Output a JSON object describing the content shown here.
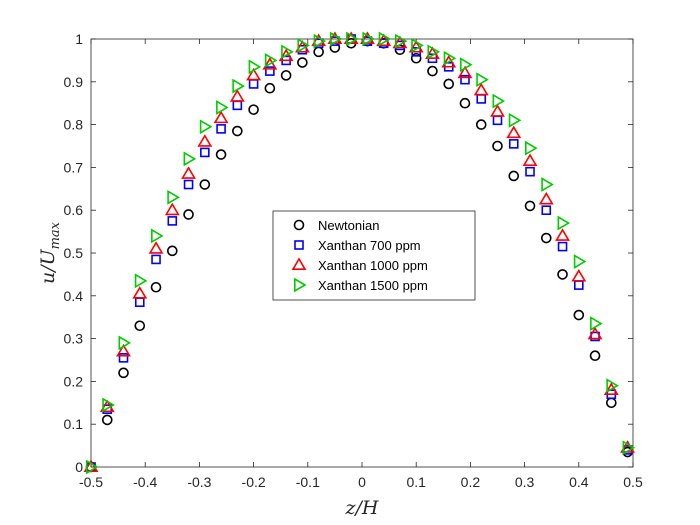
{
  "chart_data": {
    "type": "scatter",
    "title": "",
    "xlabel": "z/H",
    "ylabel_main": "u/U",
    "ylabel_sub": "max",
    "xlim": [
      -0.5,
      0.5
    ],
    "ylim": [
      0,
      1
    ],
    "xticks": [
      -0.5,
      -0.4,
      -0.3,
      -0.2,
      -0.1,
      0,
      0.1,
      0.2,
      0.3,
      0.4,
      0.5
    ],
    "yticks": [
      0,
      0.1,
      0.2,
      0.3,
      0.4,
      0.5,
      0.6,
      0.7,
      0.8,
      0.9,
      1
    ],
    "grid": false,
    "legend_position": "center",
    "series": [
      {
        "name": "Newtonian",
        "marker": "circle",
        "color": "#000000",
        "x": [
          -0.5,
          -0.47,
          -0.44,
          -0.41,
          -0.38,
          -0.35,
          -0.32,
          -0.29,
          -0.26,
          -0.23,
          -0.2,
          -0.17,
          -0.14,
          -0.11,
          -0.08,
          -0.05,
          -0.02,
          0.01,
          0.04,
          0.07,
          0.1,
          0.13,
          0.16,
          0.19,
          0.22,
          0.25,
          0.28,
          0.31,
          0.34,
          0.37,
          0.4,
          0.43,
          0.46,
          0.49
        ],
        "y": [
          0.0,
          0.11,
          0.22,
          0.33,
          0.42,
          0.505,
          0.59,
          0.66,
          0.73,
          0.785,
          0.835,
          0.885,
          0.915,
          0.945,
          0.97,
          0.98,
          0.99,
          0.995,
          0.99,
          0.975,
          0.955,
          0.925,
          0.895,
          0.85,
          0.8,
          0.75,
          0.68,
          0.61,
          0.535,
          0.45,
          0.355,
          0.26,
          0.15,
          0.035
        ]
      },
      {
        "name": "Xanthan 700 ppm",
        "marker": "square",
        "color": "#0000FF",
        "x": [
          -0.5,
          -0.47,
          -0.44,
          -0.41,
          -0.38,
          -0.35,
          -0.32,
          -0.29,
          -0.26,
          -0.23,
          -0.2,
          -0.17,
          -0.14,
          -0.11,
          -0.08,
          -0.05,
          -0.02,
          0.01,
          0.04,
          0.07,
          0.1,
          0.13,
          0.16,
          0.19,
          0.22,
          0.25,
          0.28,
          0.31,
          0.34,
          0.37,
          0.4,
          0.43,
          0.46,
          0.49
        ],
        "y": [
          0.0,
          0.135,
          0.255,
          0.385,
          0.485,
          0.575,
          0.66,
          0.735,
          0.79,
          0.845,
          0.895,
          0.925,
          0.95,
          0.975,
          0.99,
          0.995,
          1.0,
          0.995,
          0.99,
          0.985,
          0.97,
          0.955,
          0.935,
          0.905,
          0.86,
          0.81,
          0.755,
          0.69,
          0.6,
          0.515,
          0.425,
          0.305,
          0.17,
          0.04
        ]
      },
      {
        "name": "Xanthan 1000 ppm",
        "marker": "triangle-up",
        "color": "#FF0000",
        "x": [
          -0.5,
          -0.47,
          -0.44,
          -0.41,
          -0.38,
          -0.35,
          -0.32,
          -0.29,
          -0.26,
          -0.23,
          -0.2,
          -0.17,
          -0.14,
          -0.11,
          -0.08,
          -0.05,
          -0.02,
          0.01,
          0.04,
          0.07,
          0.1,
          0.13,
          0.16,
          0.19,
          0.22,
          0.25,
          0.28,
          0.31,
          0.34,
          0.37,
          0.4,
          0.43,
          0.46,
          0.49
        ],
        "y": [
          0.0,
          0.14,
          0.27,
          0.405,
          0.51,
          0.6,
          0.685,
          0.76,
          0.815,
          0.865,
          0.915,
          0.94,
          0.96,
          0.98,
          0.995,
          1.0,
          1.0,
          1.0,
          0.995,
          0.99,
          0.98,
          0.965,
          0.945,
          0.92,
          0.88,
          0.83,
          0.78,
          0.715,
          0.625,
          0.54,
          0.445,
          0.31,
          0.18,
          0.045
        ]
      },
      {
        "name": "Xanthan 1500 ppm",
        "marker": "triangle-right",
        "color": "#00CC00",
        "x": [
          -0.5,
          -0.47,
          -0.44,
          -0.41,
          -0.38,
          -0.35,
          -0.32,
          -0.29,
          -0.26,
          -0.23,
          -0.2,
          -0.17,
          -0.14,
          -0.11,
          -0.08,
          -0.05,
          -0.02,
          0.01,
          0.04,
          0.07,
          0.1,
          0.13,
          0.16,
          0.19,
          0.22,
          0.25,
          0.28,
          0.31,
          0.34,
          0.37,
          0.4,
          0.43,
          0.46,
          0.49
        ],
        "y": [
          0.0,
          0.145,
          0.29,
          0.435,
          0.54,
          0.63,
          0.72,
          0.795,
          0.84,
          0.89,
          0.935,
          0.95,
          0.97,
          0.985,
          0.995,
          1.0,
          1.0,
          1.0,
          1.0,
          0.995,
          0.985,
          0.97,
          0.955,
          0.94,
          0.905,
          0.855,
          0.81,
          0.745,
          0.66,
          0.57,
          0.48,
          0.335,
          0.19,
          0.045
        ]
      }
    ]
  }
}
